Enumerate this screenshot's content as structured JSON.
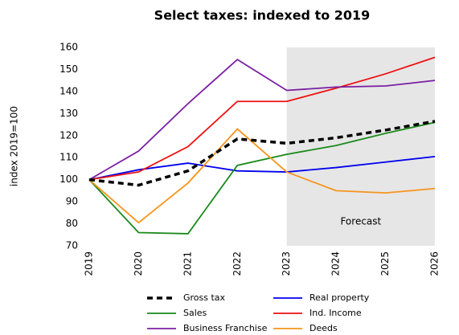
{
  "chart_data": {
    "type": "line",
    "title": "Select taxes: indexed to 2019",
    "y_label": "index 2019=100",
    "categories": [
      "2019",
      "2020",
      "2021",
      "2022",
      "2023",
      "2024",
      "2025",
      "2026"
    ],
    "series": [
      {
        "name": "Gross tax",
        "color": "#000000",
        "dashed": true,
        "values": [
          100,
          97.5,
          104,
          118.5,
          116.5,
          119,
          122.5,
          126.5
        ]
      },
      {
        "name": "Real property",
        "color": "#0000ee",
        "values": [
          100,
          104.5,
          107.5,
          104,
          103.5,
          105.5,
          108,
          110.5
        ]
      },
      {
        "name": "Sales",
        "color": "#1a8a1a",
        "values": [
          100,
          76,
          75.5,
          106.5,
          111.5,
          115.5,
          121,
          126
        ]
      },
      {
        "name": "Ind. Income",
        "color": "#ee1111",
        "values": [
          100,
          103.5,
          115,
          135.5,
          135.5,
          141.5,
          148,
          155.5
        ]
      },
      {
        "name": "Business Franchise",
        "color": "#7b1fa2",
        "values": [
          100,
          113,
          134.5,
          154.5,
          140.5,
          142,
          142.5,
          145
        ]
      },
      {
        "name": "Deeds",
        "color": "#f7941d",
        "values": [
          100,
          80.5,
          98.5,
          123,
          103.5,
          95,
          94,
          96
        ]
      }
    ],
    "shaded_region": {
      "from": "2023",
      "to": "2026",
      "label": "Forecast",
      "color": "#e6e6e6"
    },
    "ylim": [
      70,
      160
    ],
    "yticks": [
      70,
      80,
      90,
      100,
      110,
      120,
      130,
      140,
      150,
      160
    ],
    "grid": false,
    "legend": "bottom"
  }
}
